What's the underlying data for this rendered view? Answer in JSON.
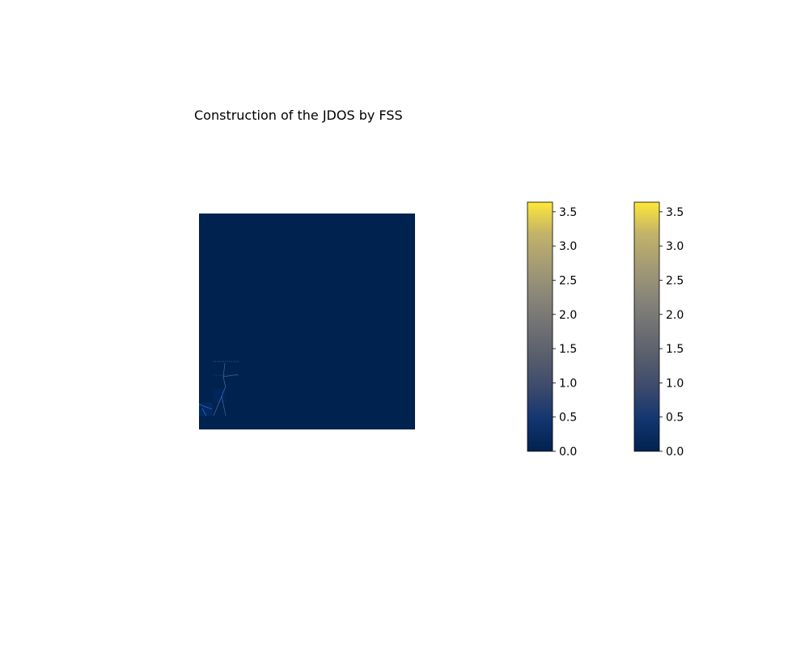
{
  "chart_data": {
    "type": "heatmap",
    "title": "Construction of the JDOS by FSS",
    "colormap": "cividis",
    "background_color": "#00224e",
    "axes_visible": false,
    "patches": [
      {
        "row": 1,
        "col": 0,
        "color": "#002a64"
      },
      {
        "row": 2,
        "col": 1,
        "color": "#00265c"
      }
    ],
    "grid_size": 16,
    "colorbars": [
      {
        "vmin": 0.0,
        "vmax": 3.64,
        "ticks": [
          "0.0",
          "0.5",
          "1.0",
          "1.5",
          "2.0",
          "2.5",
          "3.0",
          "3.5"
        ]
      },
      {
        "vmin": 0.0,
        "vmax": 3.64,
        "ticks": [
          "0.0",
          "0.5",
          "1.0",
          "1.5",
          "2.0",
          "2.5",
          "3.0",
          "3.5"
        ]
      }
    ]
  }
}
